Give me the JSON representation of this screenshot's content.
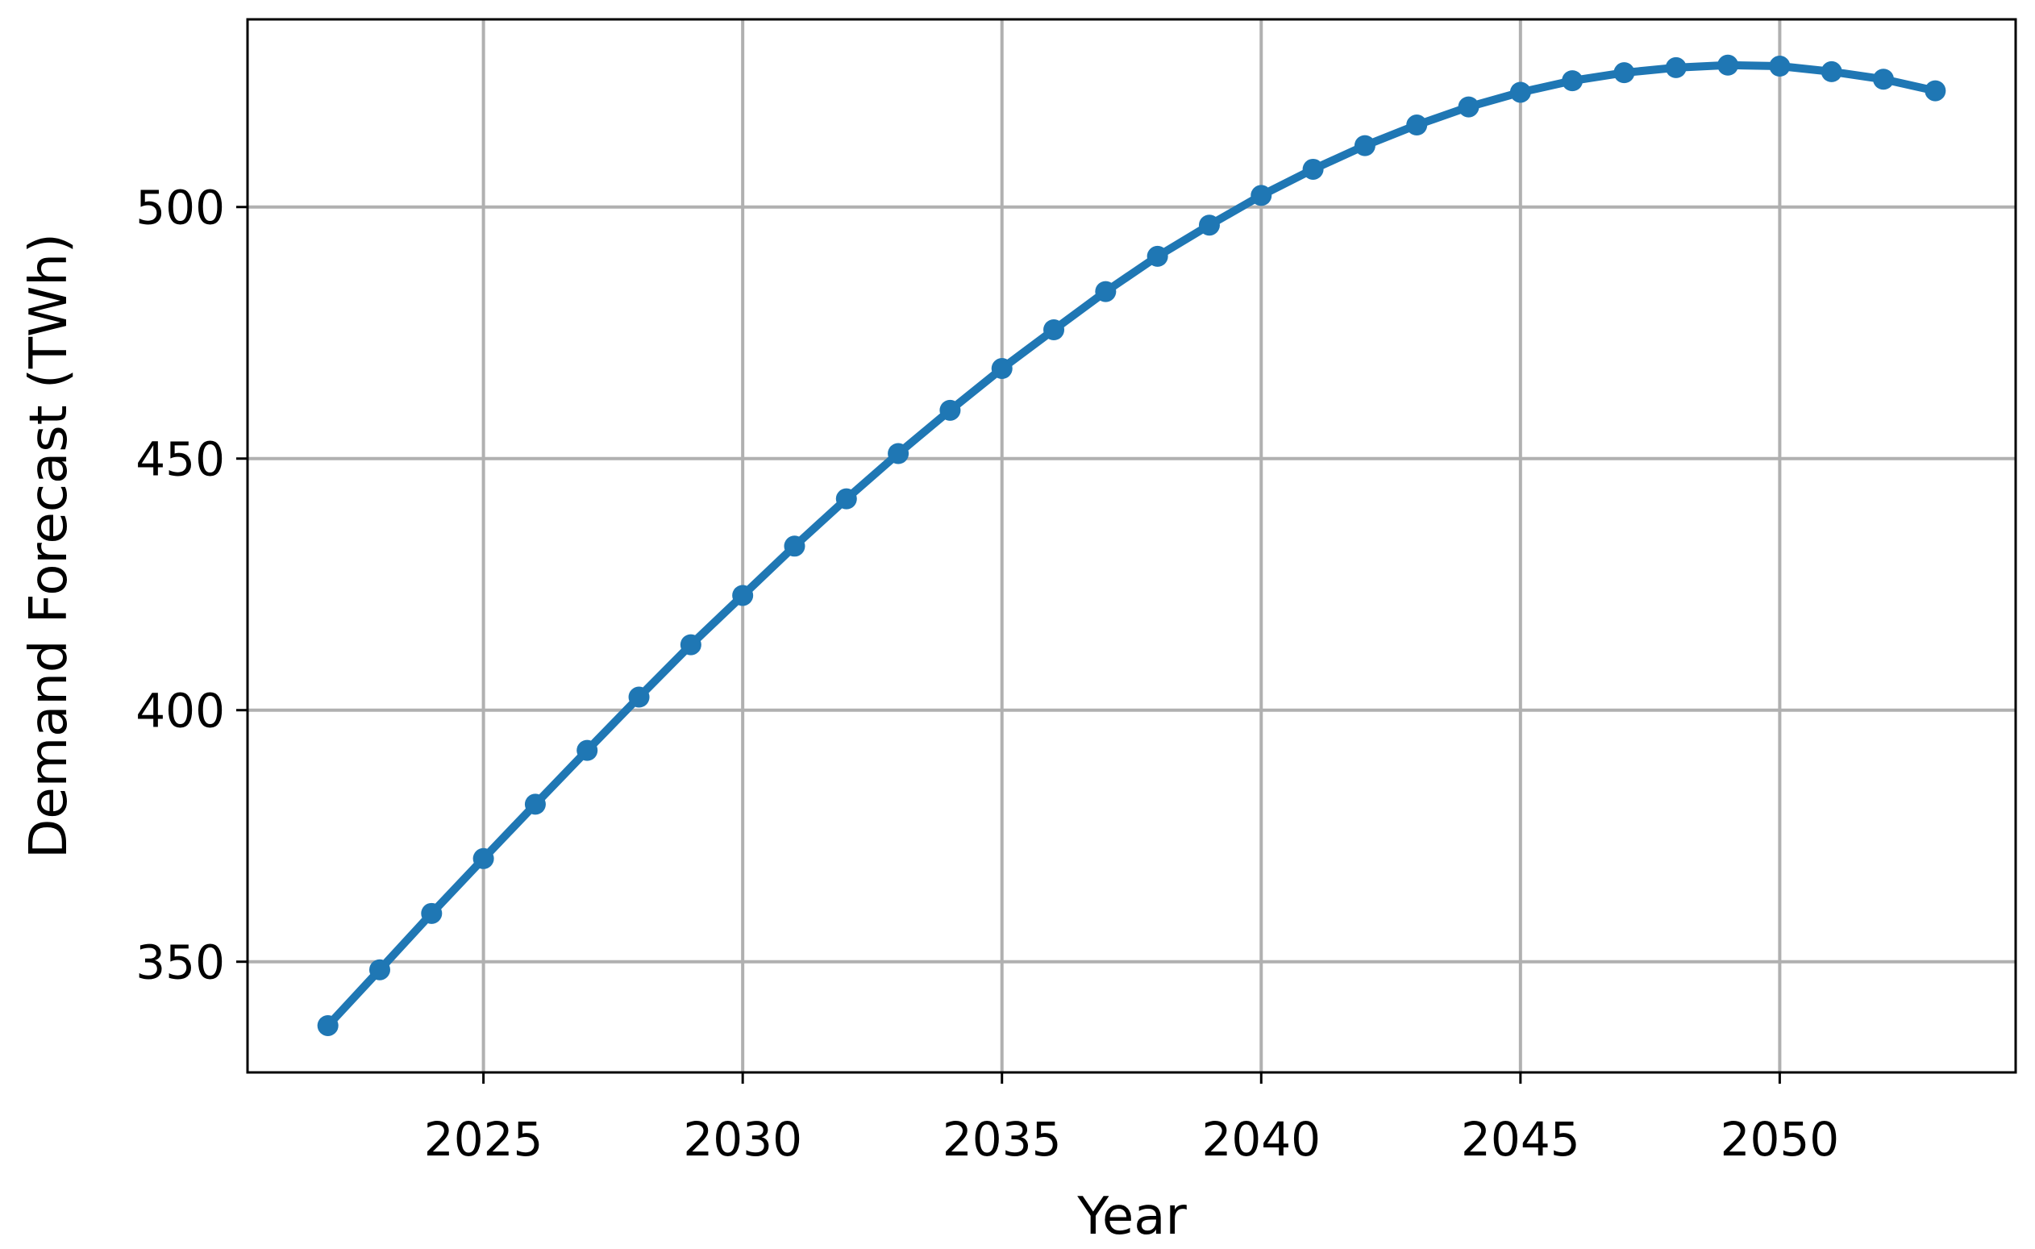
{
  "chart_data": {
    "type": "line",
    "x_label": "Year",
    "y_label": "Demand Forecast (TWh)",
    "x": [
      2022,
      2023,
      2024,
      2025,
      2026,
      2027,
      2028,
      2029,
      2030,
      2031,
      2032,
      2033,
      2034,
      2035,
      2036,
      2037,
      2038,
      2039,
      2040,
      2041,
      2042,
      2043,
      2044,
      2045,
      2046,
      2047,
      2048,
      2049,
      2050,
      2051,
      2052,
      2053
    ],
    "series": [
      {
        "color": "#1f77b4",
        "values": [
          337.3,
          348.4,
          359.6,
          370.5,
          381.3,
          392.0,
          402.6,
          413.0,
          422.8,
          432.6,
          442.0,
          451.0,
          459.6,
          467.9,
          475.6,
          483.2,
          490.2,
          496.4,
          502.3,
          507.5,
          512.2,
          516.3,
          519.9,
          522.8,
          525.1,
          526.7,
          527.7,
          528.2,
          528.0,
          526.9,
          525.4,
          523.1
        ]
      }
    ],
    "xlim": [
      2020.45,
      2054.55
    ],
    "xticks": [
      2025,
      2030,
      2035,
      2040,
      2045,
      2050
    ],
    "ylim": [
      328,
      537.3
    ],
    "yticks": [
      350,
      400,
      450,
      500
    ],
    "grid": true,
    "markers": true
  }
}
